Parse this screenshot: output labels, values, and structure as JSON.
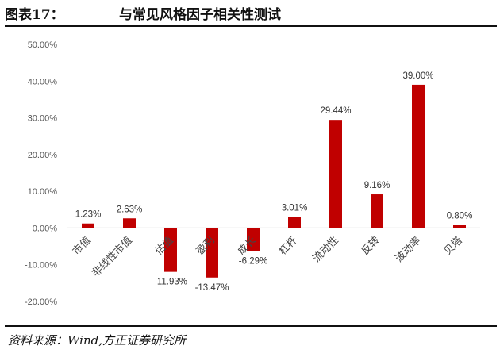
{
  "header": {
    "figure_label": "图表17：",
    "title": "与常见风格因子相关性测试"
  },
  "footer": {
    "source": "资料来源：Wind,方正证券研究所"
  },
  "colors": {
    "bar": "#C00000",
    "axis": "#bfbfbf"
  },
  "chart_data": {
    "type": "bar",
    "title": "与常见风格因子相关性测试",
    "xlabel": "",
    "ylabel": "",
    "categories": [
      "市值",
      "非线性市值",
      "估值",
      "盈利",
      "成长",
      "杠杆",
      "流动性",
      "反转",
      "波动率",
      "贝塔"
    ],
    "values": [
      1.23,
      2.63,
      -11.93,
      -13.47,
      -6.29,
      3.01,
      29.44,
      9.16,
      39.0,
      0.8
    ],
    "data_labels": [
      "1.23%",
      "2.63%",
      "-11.93%",
      "-13.47%",
      "-6.29%",
      "3.01%",
      "29.44%",
      "9.16%",
      "39.00%",
      "0.80%"
    ],
    "ylim": [
      -20,
      50
    ],
    "yticks": [
      50,
      40,
      30,
      20,
      10,
      0,
      -10,
      -20
    ],
    "ytick_labels": [
      "50.00%",
      "40.00%",
      "30.00%",
      "20.00%",
      "10.00%",
      "0.00%",
      "-10.00%",
      "-20.00%"
    ],
    "grid": false,
    "legend": "none"
  }
}
